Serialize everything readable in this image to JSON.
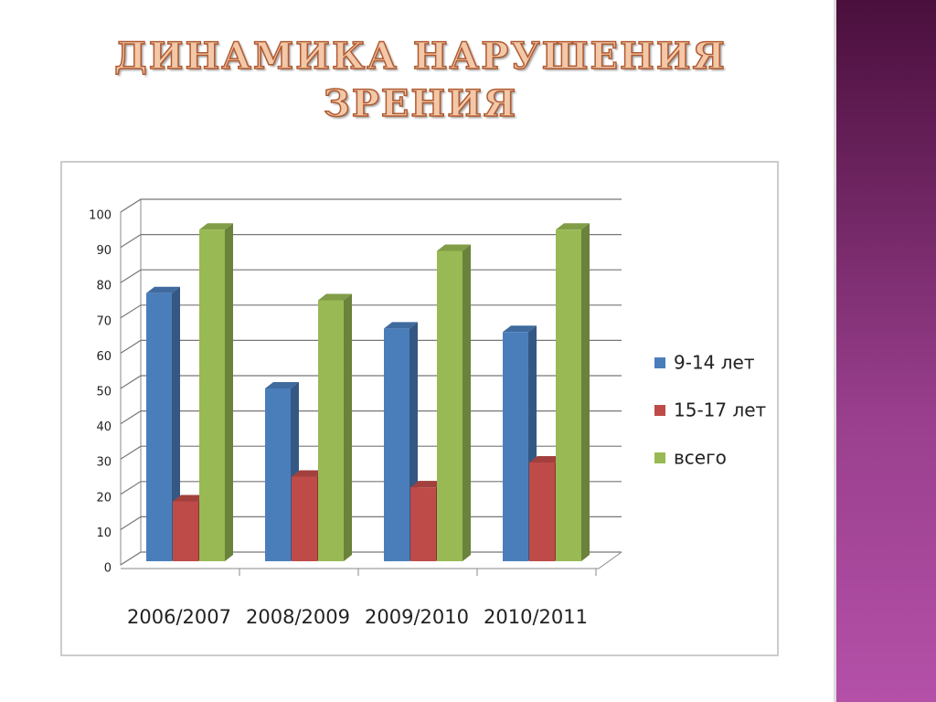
{
  "chart_data": {
    "type": "bar3d",
    "title": "ДИНАМИКА НАРУШЕНИЯ ЗРЕНИЯ",
    "categories": [
      "2006/2007",
      "2008/2009",
      "2009/2010",
      "2010/2011"
    ],
    "series": [
      {
        "name": "9-14 лет",
        "color": "#4a7ebb",
        "values": [
          77,
          50,
          67,
          66
        ]
      },
      {
        "name": "15-17 лет",
        "color": "#be4b48",
        "values": [
          18,
          25,
          22,
          29
        ]
      },
      {
        "name": "всего",
        "color": "#98b954",
        "values": [
          95,
          75,
          89,
          95
        ]
      }
    ],
    "ylim": [
      0,
      100
    ],
    "yticks": [
      0,
      10,
      20,
      30,
      40,
      50,
      60,
      70,
      80,
      90,
      100
    ],
    "grid": true,
    "legend": "right"
  }
}
